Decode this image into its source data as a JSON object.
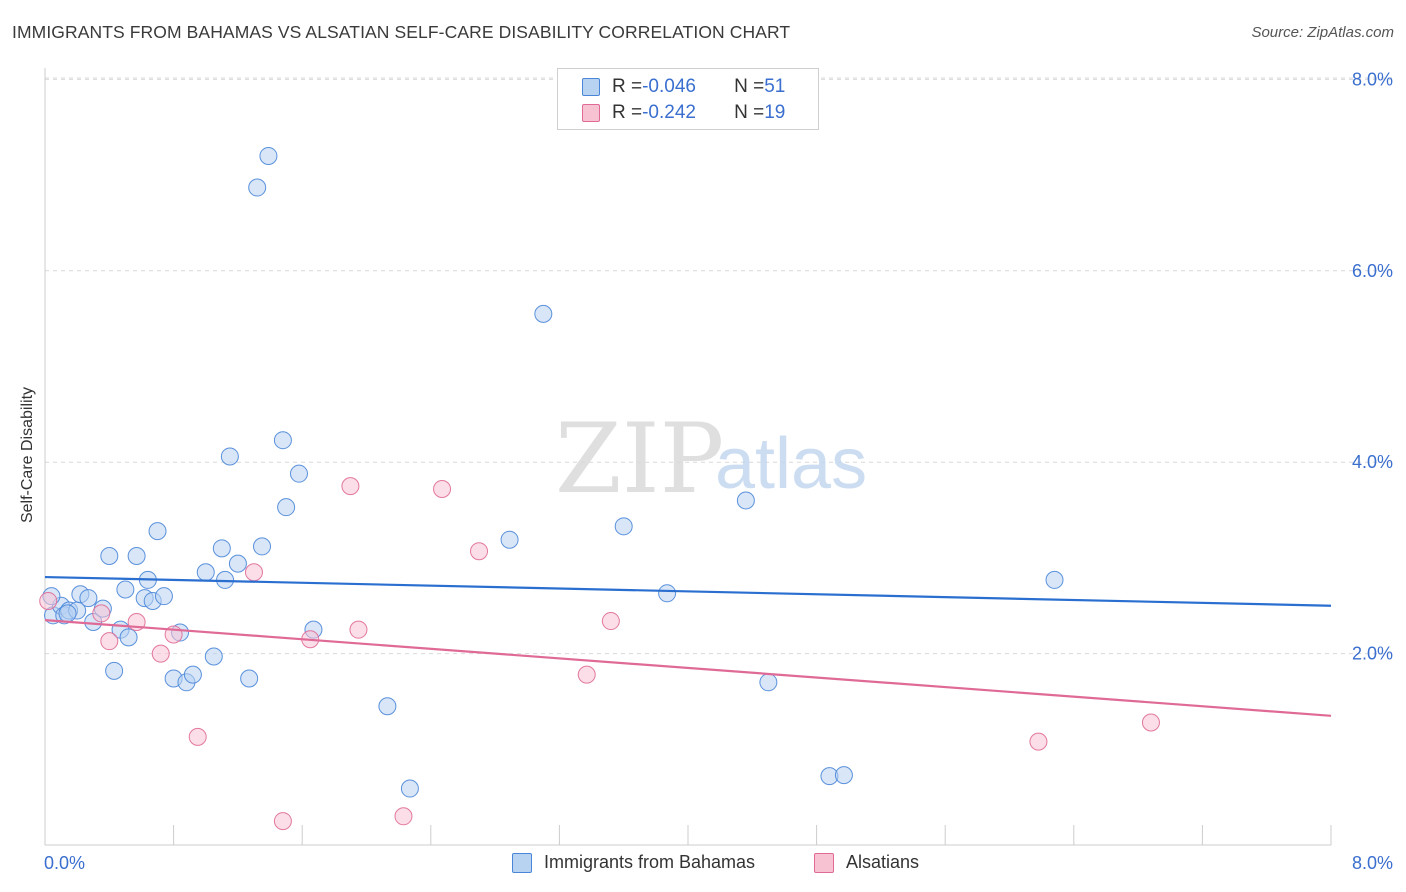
{
  "title": "IMMIGRANTS FROM BAHAMAS VS ALSATIAN SELF-CARE DISABILITY CORRELATION CHART",
  "source": "Source: ZipAtlas.com",
  "watermark": {
    "zip": "ZIP",
    "atlas": "atlas"
  },
  "colors": {
    "blue": "#4a86d8",
    "blue_fill": "#b8d2f2",
    "blue_line": "#2a6fd0",
    "pink": "#e06a96",
    "pink_fill": "#f7c3d3",
    "pink_line": "#e06a96",
    "tick_label": "#3a6fcf",
    "grid": "#d9d9d9"
  },
  "stats": {
    "blue": {
      "r_label": "R = ",
      "r_value": "-0.046",
      "n_label": "N = ",
      "n_value": "51"
    },
    "pink": {
      "r_label": "R = ",
      "r_value": "-0.242",
      "n_label": "N = ",
      "n_value": "19"
    }
  },
  "chart_data": {
    "type": "scatter",
    "title": "IMMIGRANTS FROM BAHAMAS VS ALSATIAN SELF-CARE DISABILITY CORRELATION CHART",
    "xlabel": "",
    "ylabel": "Self-Care Disability",
    "xlim": [
      0,
      8
    ],
    "ylim": [
      0,
      8
    ],
    "x_tick_labels": [
      "0.0%",
      "8.0%"
    ],
    "y_ticks": [
      2,
      4,
      6,
      8
    ],
    "y_tick_labels": [
      "2.0%",
      "4.0%",
      "6.0%",
      "8.0%"
    ],
    "legend_position": "bottom-center",
    "series": [
      {
        "name": "Immigrants from Bahamas",
        "color": "#4a86d8",
        "R": -0.046,
        "N": 51,
        "trend": {
          "x": [
            0,
            8
          ],
          "y": [
            2.8,
            2.5
          ]
        },
        "points": [
          [
            0.05,
            2.4
          ],
          [
            0.1,
            2.5
          ],
          [
            0.12,
            2.4
          ],
          [
            0.15,
            2.45
          ],
          [
            0.2,
            2.45
          ],
          [
            0.22,
            2.62
          ],
          [
            0.27,
            2.58
          ],
          [
            0.3,
            2.33
          ],
          [
            0.36,
            2.47
          ],
          [
            0.4,
            3.02
          ],
          [
            0.43,
            1.82
          ],
          [
            0.47,
            2.25
          ],
          [
            0.5,
            2.67
          ],
          [
            0.52,
            2.17
          ],
          [
            0.57,
            3.02
          ],
          [
            0.62,
            2.58
          ],
          [
            0.64,
            2.77
          ],
          [
            0.67,
            2.55
          ],
          [
            0.7,
            3.28
          ],
          [
            0.74,
            2.6
          ],
          [
            0.8,
            1.74
          ],
          [
            0.84,
            2.22
          ],
          [
            0.88,
            1.7
          ],
          [
            0.92,
            1.78
          ],
          [
            1.0,
            2.85
          ],
          [
            1.05,
            1.97
          ],
          [
            1.1,
            3.1
          ],
          [
            1.12,
            2.77
          ],
          [
            1.15,
            4.06
          ],
          [
            1.2,
            2.94
          ],
          [
            1.27,
            1.74
          ],
          [
            1.32,
            6.87
          ],
          [
            1.35,
            3.12
          ],
          [
            1.39,
            7.2
          ],
          [
            1.48,
            4.23
          ],
          [
            1.5,
            3.53
          ],
          [
            1.58,
            3.88
          ],
          [
            1.67,
            2.25
          ],
          [
            2.13,
            1.45
          ],
          [
            2.27,
            0.59
          ],
          [
            2.89,
            3.19
          ],
          [
            3.1,
            5.55
          ],
          [
            3.6,
            3.33
          ],
          [
            3.87,
            2.63
          ],
          [
            4.36,
            3.6
          ],
          [
            4.5,
            1.7
          ],
          [
            4.88,
            0.72
          ],
          [
            4.97,
            0.73
          ],
          [
            6.28,
            2.77
          ],
          [
            0.04,
            2.6
          ],
          [
            0.14,
            2.42
          ]
        ]
      },
      {
        "name": "Alsatians",
        "color": "#e06a96",
        "R": -0.242,
        "N": 19,
        "trend": {
          "x": [
            0,
            8
          ],
          "y": [
            2.35,
            1.35
          ]
        },
        "points": [
          [
            0.02,
            2.55
          ],
          [
            0.35,
            2.42
          ],
          [
            0.4,
            2.13
          ],
          [
            0.57,
            2.33
          ],
          [
            0.72,
            2.0
          ],
          [
            0.8,
            2.2
          ],
          [
            0.95,
            1.13
          ],
          [
            1.3,
            2.85
          ],
          [
            1.48,
            0.25
          ],
          [
            1.65,
            2.15
          ],
          [
            1.9,
            3.75
          ],
          [
            1.95,
            2.25
          ],
          [
            2.23,
            0.3
          ],
          [
            2.47,
            3.72
          ],
          [
            2.7,
            3.07
          ],
          [
            3.37,
            1.78
          ],
          [
            3.52,
            2.34
          ],
          [
            6.18,
            1.08
          ],
          [
            6.88,
            1.28
          ]
        ]
      }
    ]
  }
}
